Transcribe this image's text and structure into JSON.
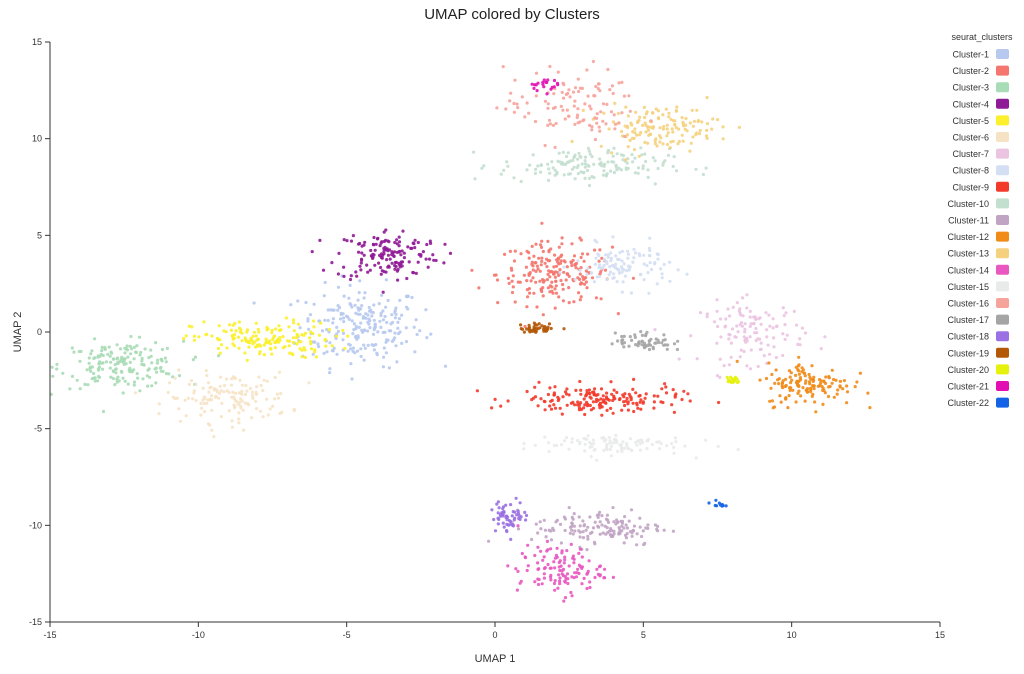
{
  "chart_data": {
    "type": "scatter",
    "title": "UMAP colored by Clusters",
    "xlabel": "UMAP 1",
    "ylabel": "UMAP 2",
    "xlim": [
      -15,
      15
    ],
    "ylim": [
      -15,
      15
    ],
    "x_ticks": [
      -15,
      -10,
      -5,
      0,
      5,
      10,
      15
    ],
    "y_ticks": [
      -15,
      -10,
      -5,
      0,
      5,
      10,
      15
    ],
    "grid": false,
    "legend_title": "seurat_clusters",
    "legend_position": "right",
    "series": [
      {
        "name": "Cluster-1",
        "color": "#b7c9ef",
        "clusters": [
          {
            "cx": -4.5,
            "cy": 0.3,
            "sx": 1.3,
            "sy": 1.3,
            "n": 220
          }
        ]
      },
      {
        "name": "Cluster-2",
        "color": "#f4766e",
        "clusters": [
          {
            "cx": 2.0,
            "cy": 3.0,
            "sx": 1.2,
            "sy": 1.0,
            "n": 200
          }
        ]
      },
      {
        "name": "Cluster-3",
        "color": "#a8dcb6",
        "clusters": [
          {
            "cx": -12.6,
            "cy": -1.7,
            "sx": 1.3,
            "sy": 0.75,
            "n": 180
          }
        ]
      },
      {
        "name": "Cluster-4",
        "color": "#8f1a96",
        "clusters": [
          {
            "cx": -3.6,
            "cy": 4.0,
            "sx": 1.1,
            "sy": 0.85,
            "n": 150
          }
        ]
      },
      {
        "name": "Cluster-5",
        "color": "#fbf02b",
        "clusters": [
          {
            "cx": -7.8,
            "cy": -0.4,
            "sx": 1.5,
            "sy": 0.6,
            "n": 160
          }
        ]
      },
      {
        "name": "Cluster-6",
        "color": "#f6e3c5",
        "clusters": [
          {
            "cx": -9.0,
            "cy": -3.4,
            "sx": 1.3,
            "sy": 0.8,
            "n": 140
          }
        ]
      },
      {
        "name": "Cluster-7",
        "color": "#ebc4e1",
        "clusters": [
          {
            "cx": 8.7,
            "cy": 0.0,
            "sx": 1.1,
            "sy": 1.0,
            "n": 120
          }
        ]
      },
      {
        "name": "Cluster-8",
        "color": "#d4dff3",
        "clusters": [
          {
            "cx": 4.3,
            "cy": 3.4,
            "sx": 1.0,
            "sy": 0.7,
            "n": 110
          }
        ]
      },
      {
        "name": "Cluster-9",
        "color": "#f33a2a",
        "clusters": [
          {
            "cx": 3.5,
            "cy": -3.5,
            "sx": 1.7,
            "sy": 0.45,
            "n": 170
          }
        ]
      },
      {
        "name": "Cluster-10",
        "color": "#c3dfcf",
        "clusters": [
          {
            "cx": 3.0,
            "cy": 8.6,
            "sx": 1.8,
            "sy": 0.55,
            "n": 150
          }
        ]
      },
      {
        "name": "Cluster-11",
        "color": "#c1a4c4",
        "clusters": [
          {
            "cx": 3.5,
            "cy": -10.1,
            "sx": 1.4,
            "sy": 0.6,
            "n": 140
          }
        ]
      },
      {
        "name": "Cluster-12",
        "color": "#f18b18",
        "clusters": [
          {
            "cx": 10.6,
            "cy": -2.7,
            "sx": 0.9,
            "sy": 0.7,
            "n": 140
          }
        ]
      },
      {
        "name": "Cluster-13",
        "color": "#f5d17e",
        "clusters": [
          {
            "cx": 5.5,
            "cy": 10.6,
            "sx": 1.3,
            "sy": 0.7,
            "n": 140
          }
        ]
      },
      {
        "name": "Cluster-14",
        "color": "#e858c0",
        "clusters": [
          {
            "cx": 2.2,
            "cy": -12.3,
            "sx": 0.9,
            "sy": 0.8,
            "n": 120
          }
        ]
      },
      {
        "name": "Cluster-15",
        "color": "#e9eaea",
        "clusters": [
          {
            "cx": 3.7,
            "cy": -5.8,
            "sx": 1.7,
            "sy": 0.35,
            "n": 100
          }
        ]
      },
      {
        "name": "Cluster-16",
        "color": "#f6a39c",
        "clusters": [
          {
            "cx": 2.6,
            "cy": 11.7,
            "sx": 1.4,
            "sy": 1.2,
            "n": 110
          }
        ]
      },
      {
        "name": "Cluster-17",
        "color": "#a5a5a5",
        "clusters": [
          {
            "cx": 5.0,
            "cy": -0.5,
            "sx": 0.6,
            "sy": 0.3,
            "n": 60
          }
        ]
      },
      {
        "name": "Cluster-18",
        "color": "#9a70e3",
        "clusters": [
          {
            "cx": 0.5,
            "cy": -9.5,
            "sx": 0.4,
            "sy": 0.5,
            "n": 60
          }
        ]
      },
      {
        "name": "Cluster-19",
        "color": "#b35806",
        "clusters": [
          {
            "cx": 1.5,
            "cy": 0.2,
            "sx": 0.4,
            "sy": 0.15,
            "n": 40
          }
        ]
      },
      {
        "name": "Cluster-20",
        "color": "#e6f20b",
        "clusters": [
          {
            "cx": 8.0,
            "cy": -2.5,
            "sx": 0.15,
            "sy": 0.15,
            "n": 20
          }
        ]
      },
      {
        "name": "Cluster-21",
        "color": "#e20fb3",
        "clusters": [
          {
            "cx": 1.6,
            "cy": 12.8,
            "sx": 0.3,
            "sy": 0.2,
            "n": 20
          }
        ]
      },
      {
        "name": "Cluster-22",
        "color": "#1463e6",
        "clusters": [
          {
            "cx": 7.5,
            "cy": -8.9,
            "sx": 0.15,
            "sy": 0.1,
            "n": 10
          }
        ]
      }
    ]
  }
}
